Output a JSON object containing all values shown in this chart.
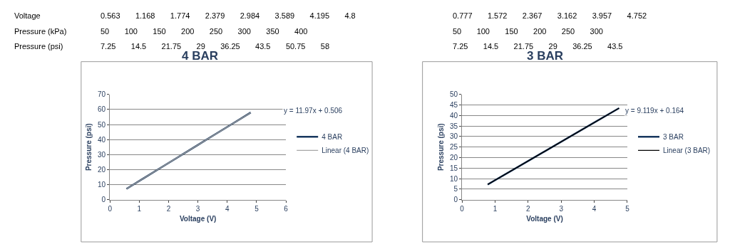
{
  "chart_data": [
    {
      "type": "other",
      "annotations": [
        "Voltage",
        "0.563 1.168 1.774 2.379 2.984 3.589 4.195 4.8",
        "0.777 1.572 2.367 3.162 3.957 4.752",
        "Pressure (kPa)",
        "50 100 150 200 250 300 350 400",
        "50 100 150 200 250 300",
        "Pressure (psi)",
        "7.25 14.5 21.75 29 36.25 43.5 50.75 58",
        "7.25 14.5 21.75 29 36.25 43.5"
      ]
    },
    {
      "type": "line",
      "title": "4 BAR",
      "xlabel": "Voltage (V)",
      "ylabel": "Pressure (psi)",
      "series": [
        {
          "name": "4 BAR",
          "color": "#17375e",
          "x": [
            0.563,
            1.168,
            1.774,
            2.379,
            2.984,
            3.589,
            4.195,
            4.8
          ],
          "values": [
            7.25,
            14.5,
            21.75,
            29,
            36.25,
            43.5,
            50.75,
            58
          ]
        },
        {
          "name": "Linear (4 BAR)",
          "color": "#a6a6a6",
          "x": [
            0.563,
            4.8
          ],
          "values": [
            7.25,
            57.96
          ]
        }
      ],
      "xlim": [
        0,
        6
      ],
      "xticks": [
        0,
        1,
        2,
        3,
        4,
        5,
        6
      ],
      "ylim": [
        0,
        70
      ],
      "yticks": [
        0,
        10,
        20,
        30,
        40,
        50,
        60,
        70
      ],
      "grid": "y",
      "legend": "right",
      "annotations": [
        "y = 11.97x + 0.506"
      ]
    },
    {
      "type": "line",
      "title": "3 BAR",
      "xlabel": "Voltage (V)",
      "ylabel": "Pressure (psi)",
      "series": [
        {
          "name": "3 BAR",
          "color": "#17375e",
          "x": [
            0.777,
            1.572,
            2.367,
            3.162,
            3.957,
            4.752
          ],
          "values": [
            7.25,
            14.5,
            21.75,
            29,
            36.25,
            43.5
          ]
        },
        {
          "name": "Linear (3 BAR)",
          "color": "#000000",
          "x": [
            0.777,
            4.752
          ],
          "values": [
            7.25,
            43.5
          ]
        }
      ],
      "xlim": [
        0,
        5
      ],
      "xticks": [
        0,
        1,
        2,
        3,
        4,
        5
      ],
      "ylim": [
        0,
        50
      ],
      "yticks": [
        0,
        5,
        10,
        15,
        20,
        25,
        30,
        35,
        40,
        45,
        50
      ],
      "grid": "y",
      "legend": "right",
      "annotations": [
        "y = 9.119x + 0.164"
      ]
    }
  ]
}
